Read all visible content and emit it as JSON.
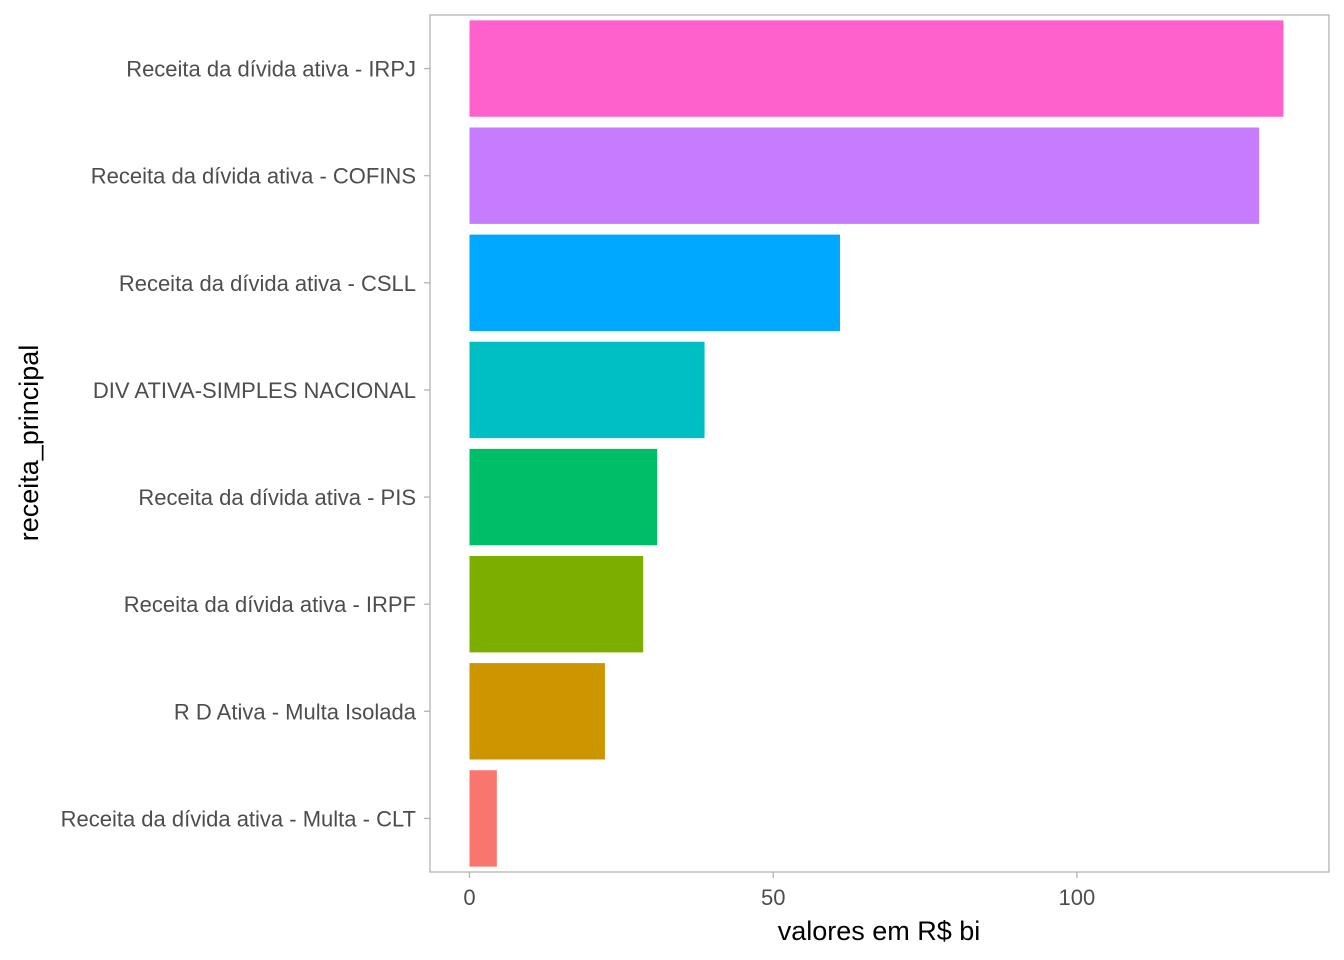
{
  "chart_data": {
    "type": "bar",
    "orientation": "horizontal",
    "title": "",
    "xlabel": "valores em R$ bi",
    "ylabel": "receita_principal",
    "xlim": [
      -6.5,
      141.5
    ],
    "xticks": [
      0,
      50,
      100
    ],
    "grid": false,
    "legend": "none",
    "panel_border_color": "#b3b3b3",
    "categories": [
      "Receita da dívida ativa - IRPJ",
      "Receita da dívida ativa - COFINS",
      "Receita da dívida ativa - CSLL",
      "DIV ATIVA-SIMPLES NACIONAL",
      "Receita da dívida ativa - PIS",
      "Receita da dívida ativa - IRPF",
      "R D Ativa - Multa Isolada",
      "Receita da dívida ativa - Multa - CLT"
    ],
    "values": [
      134,
      130,
      61,
      38.7,
      30.9,
      28.6,
      22.3,
      4.5
    ],
    "colors": [
      "#FF61CC",
      "#C77CFF",
      "#00A9FF",
      "#00BFC4",
      "#00BE67",
      "#7CAE00",
      "#CD9600",
      "#F8766D"
    ]
  }
}
